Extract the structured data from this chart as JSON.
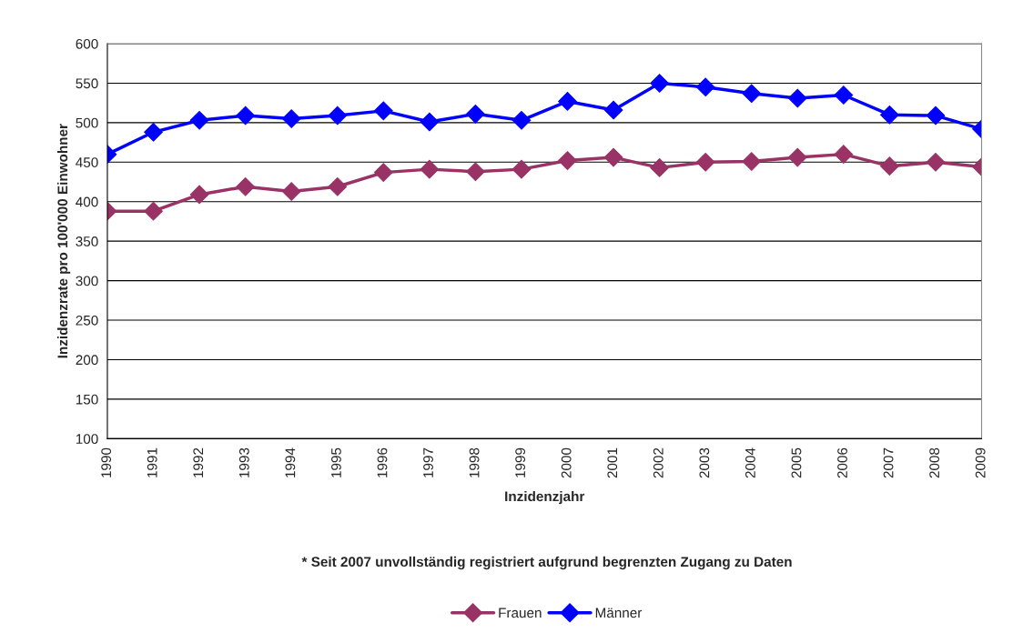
{
  "chart_data": {
    "type": "line",
    "categories": [
      "1990",
      "1991",
      "1992",
      "1993",
      "1994",
      "1995",
      "1996",
      "1997",
      "1998",
      "1999",
      "2000",
      "2001",
      "2002",
      "2003",
      "2004",
      "2005",
      "2006",
      "2007",
      "2008",
      "2009"
    ],
    "series": [
      {
        "name": "Frauen",
        "color": "#993366",
        "values": [
          388,
          388,
          409,
          419,
          413,
          419,
          437,
          441,
          438,
          441,
          452,
          456,
          443,
          450,
          451,
          456,
          460,
          445,
          450,
          444
        ]
      },
      {
        "name": "Männer",
        "color": "#0000ff",
        "values": [
          460,
          488,
          503,
          509,
          505,
          509,
          515,
          501,
          511,
          503,
          527,
          516,
          550,
          545,
          537,
          531,
          535,
          510,
          509,
          492
        ]
      }
    ],
    "xlabel": "Inzidenzjahr",
    "ylabel": "Inzidenzrate pro 100'000 Einwohner",
    "ylim": [
      100,
      600
    ],
    "yticks": [
      100,
      150,
      200,
      250,
      300,
      350,
      400,
      450,
      500,
      550,
      600
    ],
    "annotations": [
      "* Seit 2007 unvollständig registriert aufgrund begrenzten Zugang zu Daten"
    ],
    "grid": "y",
    "legend": "bottom",
    "marker": "diamond",
    "line_style": "solid"
  }
}
